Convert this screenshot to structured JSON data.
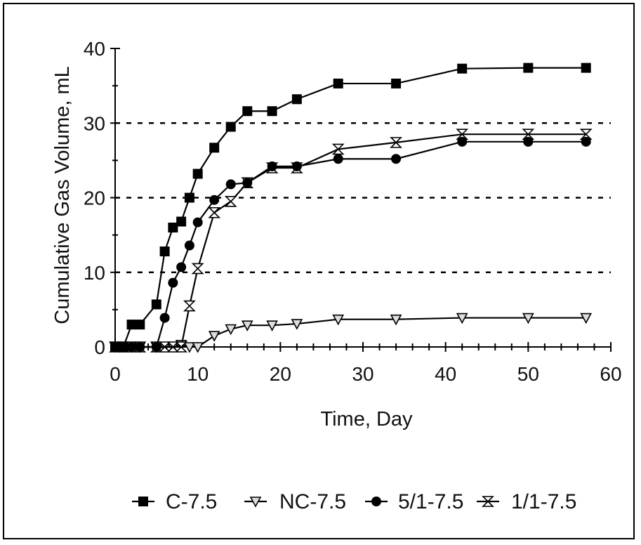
{
  "chart_data": {
    "type": "line",
    "title": "",
    "xlabel": "Time, Day",
    "ylabel": "Cumulative Gas Volume, mL",
    "xlim": [
      0,
      60
    ],
    "ylim": [
      0,
      40
    ],
    "xticks": [
      0,
      10,
      20,
      30,
      40,
      50,
      60
    ],
    "yticks": [
      0,
      10,
      20,
      30,
      40
    ],
    "x_tick_labels": [
      "0",
      "10",
      "20",
      "30",
      "40",
      "50",
      "60"
    ],
    "y_tick_labels": [
      "0",
      "10",
      "20",
      "30",
      "40"
    ],
    "grid": "horizontal dashed at 10, 20, 30",
    "legend_position": "bottom",
    "series": [
      {
        "name": "C-7.5",
        "marker": "square-filled",
        "color": "#000000",
        "points": [
          [
            0,
            0
          ],
          [
            1,
            0
          ],
          [
            2,
            3
          ],
          [
            3,
            3
          ],
          [
            5,
            5.7
          ],
          [
            6,
            12.8
          ],
          [
            7,
            16
          ],
          [
            8,
            16.8
          ],
          [
            9,
            20
          ],
          [
            10,
            23.2
          ],
          [
            12,
            26.7
          ],
          [
            14,
            29.5
          ],
          [
            16,
            31.6
          ],
          [
            19,
            31.6
          ],
          [
            22,
            33.2
          ],
          [
            27,
            35.3
          ],
          [
            34,
            35.3
          ],
          [
            42,
            37.3
          ],
          [
            50,
            37.4
          ],
          [
            57,
            37.4
          ]
        ]
      },
      {
        "name": "NC-7.5",
        "marker": "triangle-down-open",
        "color": "#000000",
        "points": [
          [
            0,
            0
          ],
          [
            1,
            0
          ],
          [
            2,
            0
          ],
          [
            3,
            0
          ],
          [
            5,
            0
          ],
          [
            6,
            0
          ],
          [
            7,
            0
          ],
          [
            8,
            0.3
          ],
          [
            9,
            0
          ],
          [
            10,
            0
          ],
          [
            12,
            1.5
          ],
          [
            14,
            2.4
          ],
          [
            16,
            2.9
          ],
          [
            19,
            2.9
          ],
          [
            22,
            3.1
          ],
          [
            27,
            3.7
          ],
          [
            34,
            3.7
          ],
          [
            42,
            3.9
          ],
          [
            50,
            3.9
          ],
          [
            57,
            3.9
          ]
        ]
      },
      {
        "name": "5/1-7.5",
        "marker": "circle-filled",
        "color": "#000000",
        "points": [
          [
            0,
            0
          ],
          [
            1,
            0
          ],
          [
            2,
            0
          ],
          [
            3,
            0
          ],
          [
            5,
            0
          ],
          [
            6,
            3.9
          ],
          [
            7,
            8.6
          ],
          [
            8,
            10.7
          ],
          [
            9,
            13.6
          ],
          [
            10,
            16.7
          ],
          [
            12,
            19.7
          ],
          [
            14,
            21.8
          ],
          [
            16,
            22
          ],
          [
            19,
            24.2
          ],
          [
            22,
            24.2
          ],
          [
            27,
            25.2
          ],
          [
            34,
            25.2
          ],
          [
            42,
            27.5
          ],
          [
            50,
            27.5
          ],
          [
            57,
            27.5
          ]
        ]
      },
      {
        "name": "1/1-7.5",
        "marker": "hourglass-open",
        "color": "#000000",
        "points": [
          [
            0,
            0
          ],
          [
            1,
            0
          ],
          [
            2,
            0
          ],
          [
            3,
            0
          ],
          [
            5,
            0
          ],
          [
            6,
            0
          ],
          [
            7,
            0
          ],
          [
            8,
            0
          ],
          [
            9,
            5.5
          ],
          [
            10,
            10.5
          ],
          [
            12,
            18
          ],
          [
            14,
            19.5
          ],
          [
            16,
            22
          ],
          [
            19,
            24
          ],
          [
            22,
            24
          ],
          [
            27,
            26.5
          ],
          [
            34,
            27.4
          ],
          [
            42,
            28.5
          ],
          [
            50,
            28.5
          ],
          [
            57,
            28.5
          ]
        ]
      }
    ]
  }
}
